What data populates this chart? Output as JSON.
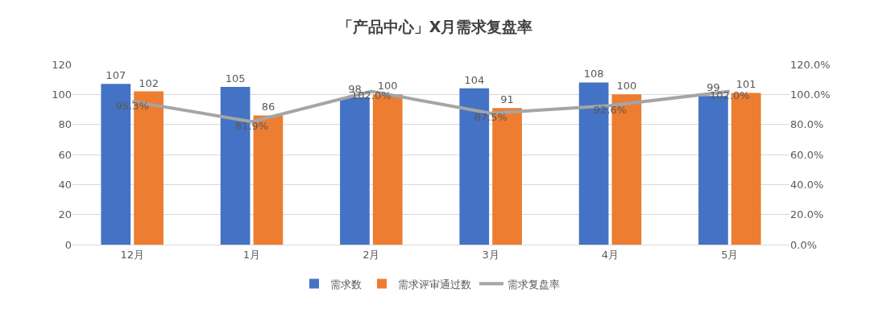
{
  "chart_data": {
    "type": "bar",
    "title": "「产品中心」X月需求复盘率",
    "categories": [
      "12月",
      "1月",
      "2月",
      "3月",
      "4月",
      "5月"
    ],
    "series": [
      {
        "name": "需求数",
        "color": "#4472c4",
        "values": [
          107,
          105,
          98,
          104,
          108,
          99
        ],
        "value_labels": [
          "107",
          "105",
          "98",
          "104",
          "108",
          "99"
        ]
      },
      {
        "name": "需求评审通过数",
        "color": "#ed7d31",
        "values": [
          102,
          86,
          100,
          91,
          100,
          101
        ],
        "value_labels": [
          "102",
          "86",
          "100",
          "91",
          "100",
          "101"
        ]
      },
      {
        "name": "需求复盘率",
        "type": "line",
        "axis": "y2",
        "color": "#a5a5a5",
        "values": [
          95.3,
          81.9,
          102.0,
          87.5,
          92.6,
          102.0
        ],
        "value_labels": [
          "95.3%",
          "81.9%",
          "102.0%",
          "87.5%",
          "92.6%",
          "102.0%"
        ]
      }
    ],
    "ylim": [
      0,
      120
    ],
    "yticks": [
      0,
      20,
      40,
      60,
      80,
      100,
      120
    ],
    "y2lim": [
      0,
      120
    ],
    "y2ticks": [
      {
        "value": 0,
        "label": "0.0%"
      },
      {
        "value": 20,
        "label": "20.0%"
      },
      {
        "value": 40,
        "label": "40.0%"
      },
      {
        "value": 60,
        "label": "60.0%"
      },
      {
        "value": 80,
        "label": "80.0%"
      },
      {
        "value": 100,
        "label": "100.0%"
      },
      {
        "value": 120,
        "label": "120.0%"
      }
    ],
    "grid": "y",
    "legend": "bottom",
    "line_style": "solid"
  }
}
